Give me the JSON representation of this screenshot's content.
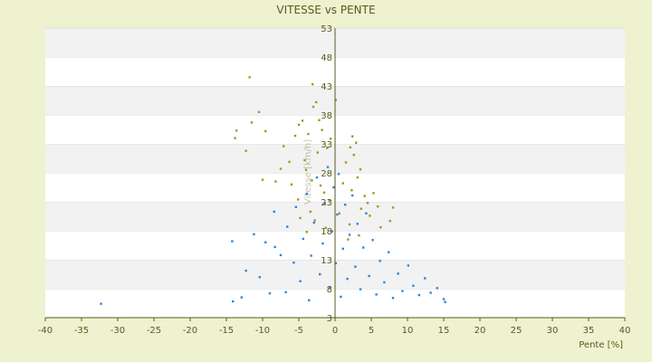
{
  "chart_data": {
    "type": "scatter",
    "title": "VITESSE vs PENTE",
    "xlabel": "Pente [%]",
    "ylabel": "Vitesse [km/h]",
    "xlim": [
      -40,
      40
    ],
    "ylim": [
      3,
      53
    ],
    "xticks": [
      "-40",
      "-35",
      "-30",
      "-25",
      "-20",
      "-15",
      "-10",
      "-5",
      "0",
      "5",
      "10",
      "15",
      "20",
      "25",
      "30",
      "35",
      "40"
    ],
    "yticks": [
      "3",
      "8",
      "13",
      "18",
      "23",
      "28",
      "33",
      "38",
      "43",
      "48",
      "53"
    ],
    "grid": true,
    "legend": "none",
    "colors": {
      "background": "#eef2cf",
      "plot": "#ffffff",
      "band": "#f2f2f2",
      "axis": "#5a5a1e",
      "series_blue": "#2f86d6",
      "series_olive": "#9a9a22"
    },
    "series": [
      {
        "color": "#9a9a22",
        "points": [
          [
            -11.8,
            44.5
          ],
          [
            -10.5,
            38.5
          ],
          [
            -11.5,
            36.7
          ],
          [
            -13.6,
            35.3
          ],
          [
            -13.8,
            34.0
          ],
          [
            -12.3,
            31.8
          ],
          [
            -9.6,
            35.2
          ],
          [
            -10.0,
            26.8
          ],
          [
            -3.1,
            43.3
          ],
          [
            -2.6,
            40.2
          ],
          [
            0.1,
            40.6
          ],
          [
            -3.0,
            39.4
          ],
          [
            -2.2,
            37.1
          ],
          [
            -5.0,
            36.3
          ],
          [
            -4.5,
            37.0
          ],
          [
            -5.5,
            34.4
          ],
          [
            -3.7,
            34.7
          ],
          [
            -1.8,
            35.4
          ],
          [
            -0.6,
            33.9
          ],
          [
            -1.1,
            32.3
          ],
          [
            -7.1,
            32.6
          ],
          [
            -6.3,
            29.9
          ],
          [
            -4.2,
            30.2
          ],
          [
            -2.4,
            31.5
          ],
          [
            2.4,
            34.3
          ],
          [
            2.9,
            33.2
          ],
          [
            2.1,
            32.4
          ],
          [
            2.6,
            31.1
          ],
          [
            1.5,
            29.8
          ],
          [
            3.5,
            28.6
          ],
          [
            3.1,
            27.2
          ],
          [
            4.1,
            24.0
          ],
          [
            4.5,
            22.8
          ],
          [
            5.3,
            24.5
          ],
          [
            5.9,
            22.2
          ],
          [
            8.0,
            22.0
          ],
          [
            7.6,
            19.7
          ],
          [
            6.3,
            18.6
          ],
          [
            -4.0,
            28.5
          ],
          [
            -3.2,
            26.7
          ],
          [
            -2.0,
            25.8
          ],
          [
            -1.5,
            24.6
          ],
          [
            -0.8,
            23.3
          ],
          [
            1.1,
            26.2
          ],
          [
            2.3,
            25.0
          ],
          [
            3.6,
            21.8
          ],
          [
            4.8,
            20.6
          ],
          [
            -5.1,
            23.4
          ],
          [
            -3.4,
            21.3
          ],
          [
            -2.8,
            19.8
          ],
          [
            -1.3,
            18.5
          ],
          [
            0.6,
            21.0
          ],
          [
            2.0,
            19.1
          ],
          [
            3.3,
            17.2
          ],
          [
            -6.0,
            26.0
          ],
          [
            -7.5,
            28.7
          ],
          [
            -8.2,
            26.5
          ],
          [
            -4.8,
            20.2
          ],
          [
            -3.9,
            17.8
          ],
          [
            1.8,
            16.5
          ]
        ]
      },
      {
        "color": "#2f86d6",
        "points": [
          [
            -32.3,
            5.4
          ],
          [
            -14.1,
            5.8
          ],
          [
            -12.9,
            6.5
          ],
          [
            -14.2,
            16.2
          ],
          [
            -12.3,
            11.1
          ],
          [
            -11.2,
            17.4
          ],
          [
            -10.4,
            10.0
          ],
          [
            -9.6,
            16.0
          ],
          [
            -9.0,
            7.2
          ],
          [
            -8.3,
            15.2
          ],
          [
            -8.4,
            21.3
          ],
          [
            -7.5,
            13.8
          ],
          [
            -6.8,
            7.4
          ],
          [
            -6.6,
            18.7
          ],
          [
            -5.7,
            12.5
          ],
          [
            -5.4,
            22.1
          ],
          [
            -4.8,
            9.3
          ],
          [
            -4.4,
            16.6
          ],
          [
            -3.9,
            24.4
          ],
          [
            -3.6,
            6.0
          ],
          [
            -3.3,
            13.7
          ],
          [
            -2.9,
            19.4
          ],
          [
            -2.5,
            27.2
          ],
          [
            -2.1,
            10.5
          ],
          [
            -1.7,
            15.8
          ],
          [
            -1.4,
            22.7
          ],
          [
            -1.0,
            29.0
          ],
          [
            -0.7,
            8.2
          ],
          [
            -0.4,
            17.9
          ],
          [
            -0.2,
            25.5
          ],
          [
            0.1,
            12.4
          ],
          [
            0.3,
            20.8
          ],
          [
            0.5,
            27.8
          ],
          [
            0.8,
            6.6
          ],
          [
            1.1,
            14.9
          ],
          [
            1.4,
            22.5
          ],
          [
            1.7,
            9.7
          ],
          [
            2.0,
            17.3
          ],
          [
            2.4,
            24.1
          ],
          [
            2.8,
            11.8
          ],
          [
            3.1,
            19.2
          ],
          [
            3.5,
            7.9
          ],
          [
            3.9,
            15.1
          ],
          [
            4.3,
            21.0
          ],
          [
            4.7,
            10.2
          ],
          [
            5.2,
            16.4
          ],
          [
            5.7,
            7.0
          ],
          [
            6.2,
            12.8
          ],
          [
            6.8,
            9.1
          ],
          [
            7.4,
            14.3
          ],
          [
            8.0,
            6.4
          ],
          [
            8.7,
            10.6
          ],
          [
            9.3,
            7.6
          ],
          [
            10.1,
            12.0
          ],
          [
            10.8,
            8.5
          ],
          [
            11.6,
            6.9
          ],
          [
            12.4,
            9.8
          ],
          [
            13.2,
            7.3
          ],
          [
            14.1,
            8.1
          ],
          [
            15.0,
            6.2
          ],
          [
            15.2,
            5.7
          ]
        ]
      }
    ]
  }
}
